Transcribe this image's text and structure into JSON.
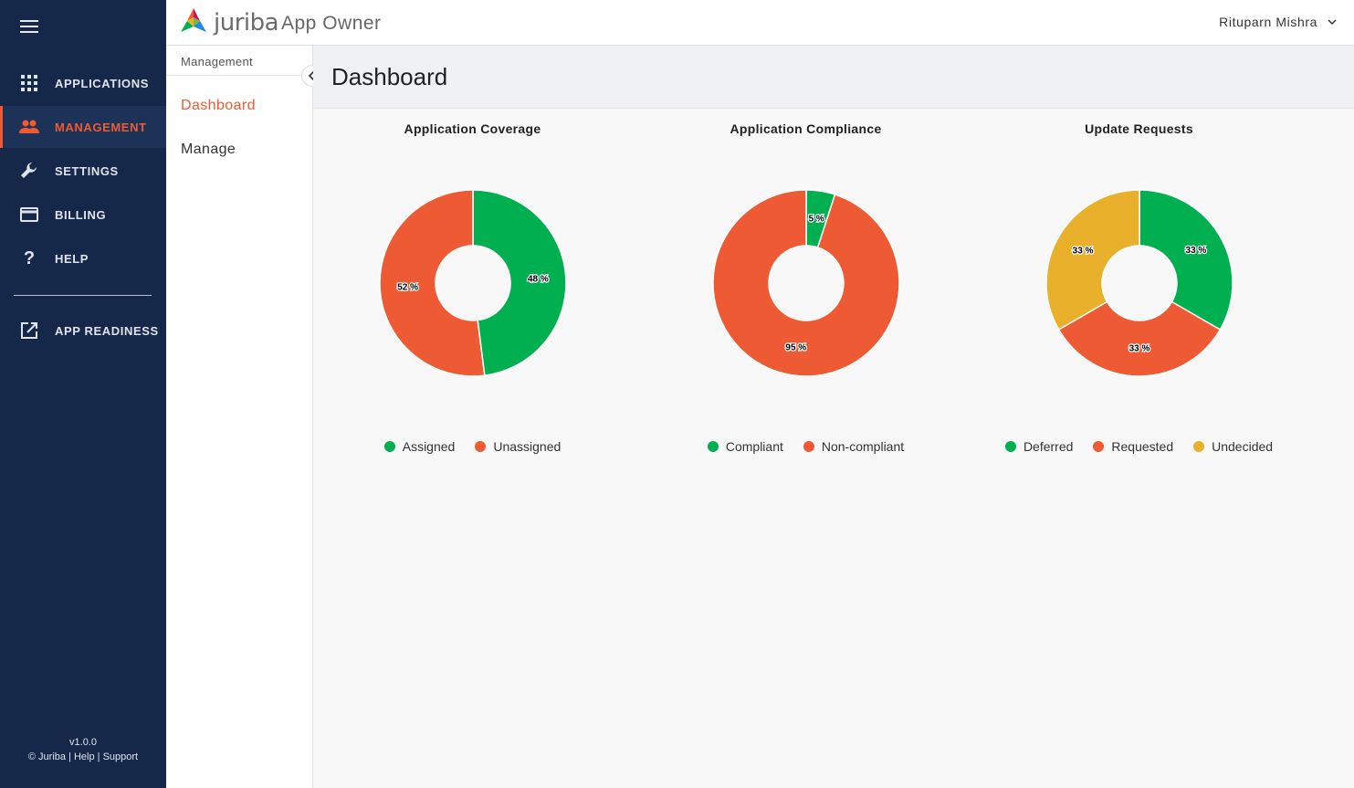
{
  "app": {
    "brand": "juriba",
    "app_name": "App Owner",
    "user_name": "Rituparn Mishra",
    "version": "v1.0.0",
    "footer_links": "© Juriba | Help | Support"
  },
  "sidebar": {
    "items": [
      {
        "label": "APPLICATIONS",
        "icon": "grid-icon"
      },
      {
        "label": "MANAGEMENT",
        "icon": "people-icon"
      },
      {
        "label": "SETTINGS",
        "icon": "wrench-icon"
      },
      {
        "label": "BILLING",
        "icon": "credit-card-icon"
      },
      {
        "label": "HELP",
        "icon": "question-icon"
      },
      {
        "label": "APP READINESS",
        "icon": "external-link-icon"
      }
    ]
  },
  "subnav": {
    "title": "Management",
    "items": [
      {
        "label": "Dashboard"
      },
      {
        "label": "Manage"
      }
    ]
  },
  "page": {
    "title": "Dashboard"
  },
  "colors": {
    "green": "#00b050",
    "orange": "#ee5a33",
    "yellow": "#e9b12b",
    "sidebar": "#15284a",
    "accent": "#ee5a33"
  },
  "chart_data": [
    {
      "type": "pie",
      "title": "Application Coverage",
      "labels": [
        "Assigned",
        "Unassigned"
      ],
      "values": [
        48,
        52
      ],
      "colors": [
        "#00b050",
        "#ee5a33"
      ],
      "value_labels": [
        "48 %",
        "52 %"
      ],
      "legend": "bottom"
    },
    {
      "type": "pie",
      "title": "Application Compliance",
      "labels": [
        "Compliant",
        "Non-compliant"
      ],
      "values": [
        5,
        95
      ],
      "colors": [
        "#00b050",
        "#ee5a33"
      ],
      "value_labels": [
        "5 %",
        "95 %"
      ],
      "legend": "bottom"
    },
    {
      "type": "pie",
      "title": "Update Requests",
      "labels": [
        "Deferred",
        "Requested",
        "Undecided"
      ],
      "values": [
        33.33,
        33.33,
        33.34
      ],
      "colors": [
        "#00b050",
        "#ee5a33",
        "#e9b12b"
      ],
      "value_labels": [
        "33 %",
        "33 %",
        "33 %"
      ],
      "legend": "bottom"
    }
  ]
}
